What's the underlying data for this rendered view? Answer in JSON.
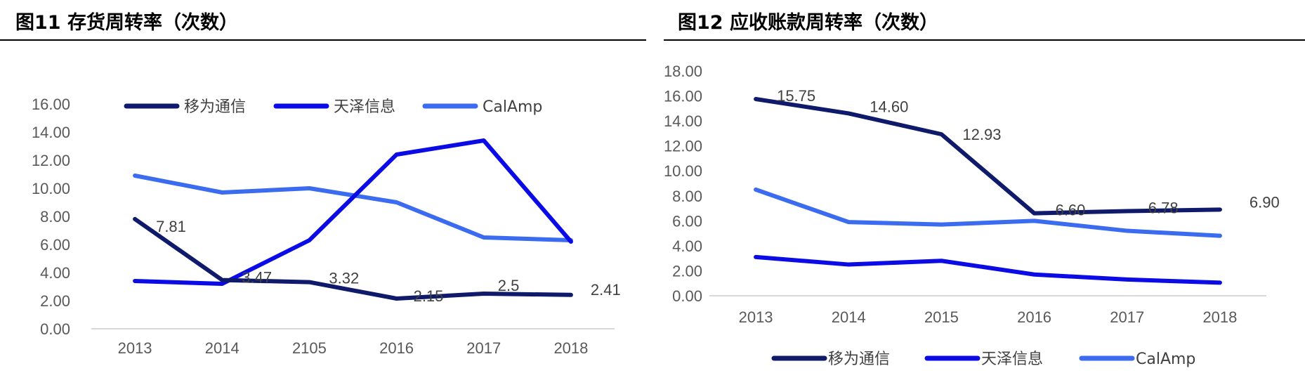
{
  "figures": [
    {
      "title": "图11 存货周转率（次数）"
    },
    {
      "title": "图12 应收账款周转率（次数）"
    }
  ],
  "chart_data": [
    {
      "type": "line",
      "title": "图11 存货周转率（次数）",
      "categories": [
        "2013",
        "2014",
        "2105",
        "2016",
        "2017",
        "2018"
      ],
      "ylim": [
        0,
        16
      ],
      "yticks": [
        "0.00",
        "2.00",
        "4.00",
        "6.00",
        "8.00",
        "10.00",
        "12.00",
        "14.00",
        "16.00"
      ],
      "legend_position": "top",
      "series": [
        {
          "name": "移为通信",
          "color": "#101a6b",
          "values": [
            7.81,
            3.47,
            3.32,
            2.15,
            2.5,
            2.41
          ],
          "labels": [
            "7.81",
            "3.47",
            "3.32",
            "2.15",
            "2.5",
            "2.41"
          ]
        },
        {
          "name": "天泽信息",
          "color": "#0b0be6",
          "values": [
            3.4,
            3.2,
            6.3,
            12.4,
            13.4,
            6.2
          ]
        },
        {
          "name": "CalAmp",
          "color": "#3b6bef",
          "values": [
            10.9,
            9.7,
            10.0,
            9.0,
            6.5,
            6.3
          ]
        }
      ]
    },
    {
      "type": "line",
      "title": "图12 应收账款周转率（次数）",
      "categories": [
        "2013",
        "2014",
        "2015",
        "2016",
        "2017",
        "2018"
      ],
      "ylim": [
        0,
        18
      ],
      "yticks": [
        "0.00",
        "2.00",
        "4.00",
        "6.00",
        "8.00",
        "10.00",
        "12.00",
        "14.00",
        "16.00",
        "18.00"
      ],
      "legend_position": "bottom",
      "series": [
        {
          "name": "移为通信",
          "color": "#101a6b",
          "values": [
            15.75,
            14.6,
            12.93,
            6.6,
            6.78,
            6.9
          ],
          "labels": [
            "15.75",
            "14.60",
            "12.93",
            "6.60",
            "6.78",
            "6.90"
          ]
        },
        {
          "name": "天泽信息",
          "color": "#0b0be6",
          "values": [
            3.1,
            2.5,
            2.8,
            1.7,
            1.3,
            1.05
          ]
        },
        {
          "name": "CalAmp",
          "color": "#3b6bef",
          "values": [
            8.5,
            5.9,
            5.7,
            6.0,
            5.2,
            4.8
          ]
        }
      ]
    }
  ]
}
